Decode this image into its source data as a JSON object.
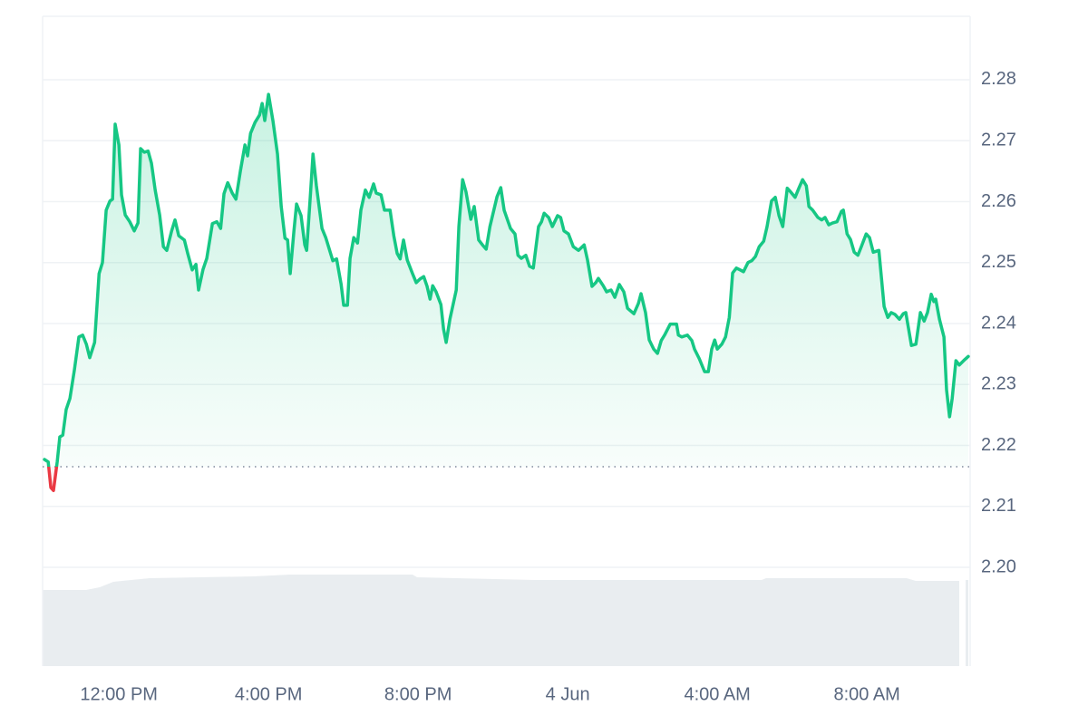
{
  "chart_data": {
    "type": "line",
    "x": [
      10.01,
      10.11,
      10.18,
      10.25,
      10.35,
      10.42,
      10.5,
      10.59,
      10.69,
      10.81,
      10.93,
      11.03,
      11.13,
      11.22,
      11.35,
      11.47,
      11.56,
      11.66,
      11.76,
      11.83,
      11.9,
      12.0,
      12.07,
      12.17,
      12.29,
      12.41,
      12.51,
      12.58,
      12.68,
      12.78,
      12.87,
      12.97,
      13.09,
      13.19,
      13.28,
      13.41,
      13.5,
      13.6,
      13.75,
      13.84,
      13.96,
      14.06,
      14.13,
      14.25,
      14.35,
      14.5,
      14.62,
      14.72,
      14.81,
      14.91,
      15.03,
      15.13,
      15.25,
      15.37,
      15.44,
      15.52,
      15.64,
      15.76,
      15.83,
      15.9,
      16.0,
      16.12,
      16.24,
      16.34,
      16.44,
      16.51,
      16.58,
      16.68,
      16.75,
      16.87,
      16.97,
      17.02,
      17.12,
      17.19,
      17.28,
      17.43,
      17.53,
      17.72,
      17.82,
      17.94,
      18.01,
      18.11,
      18.18,
      18.28,
      18.38,
      18.47,
      18.59,
      18.69,
      18.81,
      18.88,
      19.01,
      19.1,
      19.25,
      19.35,
      19.44,
      19.52,
      19.61,
      19.71,
      19.85,
      19.95,
      20.05,
      20.15,
      20.24,
      20.32,
      20.39,
      20.48,
      20.61,
      20.68,
      20.75,
      20.85,
      21.02,
      21.09,
      21.19,
      21.28,
      21.41,
      21.5,
      21.62,
      21.72,
      21.82,
      21.92,
      22.11,
      22.21,
      22.3,
      22.47,
      22.59,
      22.67,
      22.76,
      22.88,
      22.98,
      23.08,
      23.22,
      23.3,
      23.37,
      23.49,
      23.59,
      23.73,
      23.81,
      23.9,
      24.02,
      24.15,
      24.29,
      24.44,
      24.53,
      24.65,
      24.75,
      24.82,
      24.95,
      25.04,
      25.16,
      25.26,
      25.38,
      25.5,
      25.6,
      25.77,
      25.89,
      25.96,
      26.08,
      26.18,
      26.3,
      26.4,
      26.5,
      26.59,
      26.74,
      26.91,
      26.96,
      27.05,
      27.2,
      27.32,
      27.39,
      27.52,
      27.66,
      27.76,
      27.85,
      27.93,
      28.0,
      28.12,
      28.22,
      28.32,
      28.41,
      28.51,
      28.61,
      28.7,
      28.82,
      28.92,
      29.02,
      29.12,
      29.24,
      29.33,
      29.45,
      29.55,
      29.65,
      29.75,
      29.87,
      29.96,
      30.08,
      30.18,
      30.28,
      30.38,
      30.45,
      30.55,
      30.69,
      30.79,
      30.88,
      30.98,
      31.08,
      31.2,
      31.32,
      31.37,
      31.47,
      31.56,
      31.66,
      31.76,
      31.85,
      31.98,
      32.07,
      32.17,
      32.32,
      32.46,
      32.56,
      32.65,
      32.75,
      32.87,
      32.97,
      33.04,
      33.19,
      33.31,
      33.43,
      33.53,
      33.62,
      33.72,
      33.79,
      33.84,
      33.94,
      34.06,
      34.13,
      34.21,
      34.28,
      34.38,
      34.47,
      34.62,
      34.71
    ],
    "series": [
      {
        "color": "#16c784",
        "negative_color": "#ea3943",
        "values": [
          2.2177,
          2.2173,
          2.2131,
          2.2126,
          2.2173,
          2.2214,
          2.2217,
          2.2259,
          2.2277,
          2.2324,
          2.2378,
          2.2381,
          2.2366,
          2.2344,
          2.2369,
          2.2482,
          2.25,
          2.2586,
          2.2601,
          2.2604,
          2.2727,
          2.2693,
          2.2611,
          2.2578,
          2.2567,
          2.2552,
          2.2565,
          2.2687,
          2.2681,
          2.2683,
          2.2663,
          2.2619,
          2.2578,
          2.2526,
          2.252,
          2.2552,
          2.257,
          2.2544,
          2.2537,
          2.2515,
          2.2488,
          2.2497,
          2.2455,
          2.2489,
          2.2507,
          2.2564,
          2.2567,
          2.2556,
          2.2613,
          2.2631,
          2.2614,
          2.2604,
          2.2651,
          2.2693,
          2.2675,
          2.2712,
          2.273,
          2.2742,
          2.2761,
          2.2733,
          2.2776,
          2.2732,
          2.2678,
          2.2592,
          2.254,
          2.2537,
          2.2482,
          2.2552,
          2.2596,
          2.2577,
          2.2529,
          2.252,
          2.2611,
          2.2678,
          2.2626,
          2.2556,
          2.2541,
          2.2503,
          2.2506,
          2.2465,
          2.243,
          2.243,
          2.2507,
          2.2541,
          2.2532,
          2.2586,
          2.2619,
          2.2607,
          2.2629,
          2.2614,
          2.2611,
          2.2586,
          2.2586,
          2.2544,
          2.2515,
          2.2506,
          2.2537,
          2.2504,
          2.2482,
          2.2467,
          2.2473,
          2.2477,
          2.2461,
          2.244,
          2.2462,
          2.2452,
          2.2431,
          2.2391,
          2.2369,
          2.2407,
          2.2455,
          2.2559,
          2.2636,
          2.2616,
          2.2571,
          2.2592,
          2.2537,
          2.2529,
          2.2522,
          2.2559,
          2.2608,
          2.2623,
          2.2586,
          2.2556,
          2.2547,
          2.2512,
          2.2507,
          2.2512,
          2.2494,
          2.2491,
          2.2559,
          2.2567,
          2.2581,
          2.2574,
          2.2559,
          2.2577,
          2.2574,
          2.2552,
          2.2547,
          2.2526,
          2.252,
          2.2529,
          2.2504,
          2.2461,
          2.2467,
          2.2474,
          2.2462,
          2.2452,
          2.2455,
          2.2443,
          2.2464,
          2.2452,
          2.2425,
          2.2416,
          2.2433,
          2.2449,
          2.2418,
          2.2373,
          2.2358,
          2.2351,
          2.2372,
          2.2381,
          2.2399,
          2.2399,
          2.2381,
          2.2378,
          2.2381,
          2.2372,
          2.2358,
          2.2342,
          2.2321,
          2.2321,
          2.2358,
          2.2373,
          2.2358,
          2.2366,
          2.2378,
          2.241,
          2.2483,
          2.2491,
          2.2488,
          2.2485,
          2.25,
          2.2503,
          2.251,
          2.2526,
          2.2535,
          2.2559,
          2.2601,
          2.2607,
          2.2577,
          2.2559,
          2.2622,
          2.2616,
          2.2607,
          2.2622,
          2.2636,
          2.2626,
          2.2592,
          2.2586,
          2.2574,
          2.257,
          2.2574,
          2.2562,
          2.2565,
          2.2567,
          2.2584,
          2.2586,
          2.2547,
          2.2538,
          2.2517,
          2.2512,
          2.2526,
          2.2547,
          2.2541,
          2.2517,
          2.252,
          2.2428,
          2.241,
          2.2418,
          2.2415,
          2.2407,
          2.2416,
          2.2418,
          2.2364,
          2.2366,
          2.2418,
          2.2404,
          2.2418,
          2.2448,
          2.2436,
          2.244,
          2.2407,
          2.2378,
          2.2291,
          2.2247,
          2.2277,
          2.2339,
          2.2332,
          2.2341,
          2.2346
        ]
      }
    ],
    "baseline": 2.2165,
    "xlim": [
      9.96,
      34.76
    ],
    "xticks": [
      {
        "value": 12,
        "label": "12:00 PM"
      },
      {
        "value": 16,
        "label": "4:00 PM"
      },
      {
        "value": 20,
        "label": "8:00 PM"
      },
      {
        "value": 24,
        "label": "4 Jun"
      },
      {
        "value": 28,
        "label": "4:00 AM"
      },
      {
        "value": 32,
        "label": "8:00 AM"
      }
    ],
    "ylim": [
      2.1838,
      2.2904
    ],
    "yticks": [
      {
        "value": 2.2,
        "label": "2.20"
      },
      2.21,
      2.22,
      2.23,
      2.24,
      2.25,
      2.26,
      2.27,
      2.28
    ],
    "grid": true
  }
}
